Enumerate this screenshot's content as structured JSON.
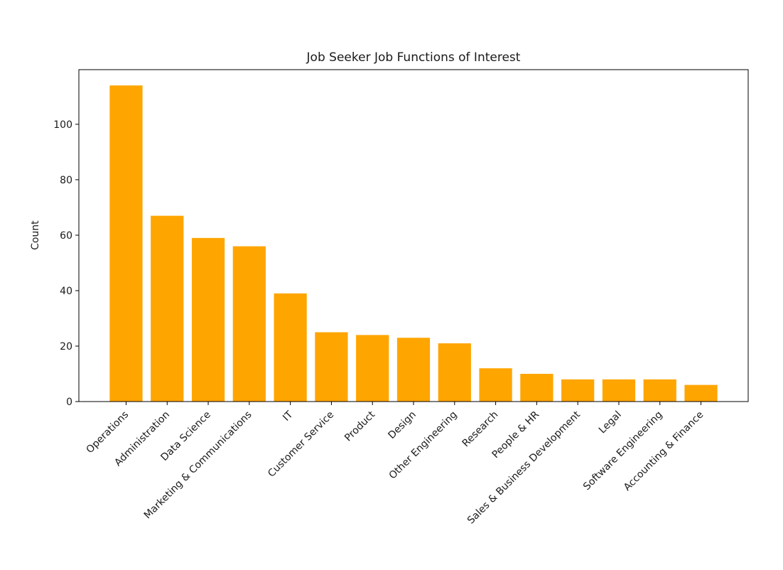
{
  "chart_data": {
    "type": "bar",
    "title": "Job Seeker Job Functions of Interest",
    "xlabel": "",
    "ylabel": "Count",
    "categories": [
      "Operations",
      "Administration",
      "Data Science",
      "Marketing & Communications",
      "IT",
      "Customer Service",
      "Product",
      "Design",
      "Other Engineering",
      "Research",
      "People & HR",
      "Sales & Business Development",
      "Legal",
      "Software Engineering",
      "Accounting & Finance"
    ],
    "values": [
      114,
      67,
      59,
      56,
      39,
      25,
      24,
      23,
      21,
      12,
      10,
      8,
      8,
      8,
      6
    ],
    "ylim": [
      0,
      119.7
    ],
    "yticks": [
      0,
      20,
      40,
      60,
      80,
      100
    ],
    "grid": false,
    "bar_color": "#ffa500"
  }
}
